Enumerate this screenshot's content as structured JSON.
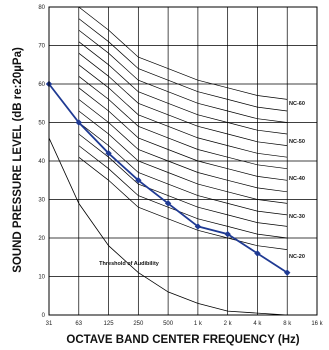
{
  "chart_data": {
    "type": "line",
    "title": "",
    "xlabel": "OCTAVE BAND CENTER FREQUENCY (Hz)",
    "ylabel": "SOUND PRESSURE LEVEL (dB re:20µPa)",
    "x_tick_labels": [
      "31",
      "63",
      "125",
      "250",
      "500",
      "1 k",
      "2 k",
      "4 k",
      "8 k",
      "16 k"
    ],
    "y_ticks": [
      0,
      10,
      20,
      30,
      40,
      50,
      60,
      70,
      80
    ],
    "ylim": [
      0,
      80
    ],
    "grid": true,
    "nc_curves": [
      {
        "name": "",
        "values": [
          null,
          80,
          74,
          67,
          64,
          61,
          59,
          57,
          56
        ]
      },
      {
        "name": "NC-60",
        "values": [
          null,
          77,
          71,
          64,
          61,
          58,
          56,
          54,
          53
        ]
      },
      {
        "name": "",
        "values": [
          null,
          74,
          68,
          61,
          58,
          55,
          53,
          51,
          50
        ]
      },
      {
        "name": "",
        "values": [
          null,
          71,
          65,
          58,
          55,
          52,
          50,
          48,
          47
        ]
      },
      {
        "name": "NC-50",
        "values": [
          null,
          68,
          62,
          55,
          52,
          49,
          47,
          45,
          44
        ]
      },
      {
        "name": "",
        "values": [
          null,
          65,
          59,
          52,
          49,
          46,
          44,
          42,
          41
        ]
      },
      {
        "name": "",
        "values": [
          null,
          62,
          56,
          49,
          46,
          43,
          41,
          39,
          38
        ]
      },
      {
        "name": "NC-40",
        "values": [
          null,
          59,
          53,
          46,
          43,
          40,
          38,
          36,
          35
        ]
      },
      {
        "name": "",
        "values": [
          null,
          56,
          50,
          43,
          40,
          37,
          35,
          33,
          32
        ]
      },
      {
        "name": "",
        "values": [
          null,
          53,
          47,
          40,
          37,
          34,
          32,
          30,
          29
        ]
      },
      {
        "name": "NC-30",
        "values": [
          null,
          50,
          44,
          37,
          34,
          31,
          29,
          27,
          26
        ]
      },
      {
        "name": "",
        "values": [
          null,
          47,
          41,
          34,
          31,
          28,
          26,
          24,
          23
        ]
      },
      {
        "name": "",
        "values": [
          null,
          44,
          38,
          31,
          28,
          25,
          23,
          21,
          20
        ]
      },
      {
        "name": "NC-20",
        "values": [
          null,
          41,
          35,
          28,
          25,
          22,
          20,
          18,
          17
        ]
      }
    ],
    "threshold_label": "Threshold of Audibility",
    "threshold": [
      46,
      29,
      18,
      11,
      6,
      3,
      1,
      0.5,
      0
    ],
    "series": [
      {
        "name": "",
        "color": "#1f3a93",
        "values": [
          60,
          50,
          42,
          35,
          29,
          23,
          21,
          16,
          11
        ]
      }
    ]
  }
}
